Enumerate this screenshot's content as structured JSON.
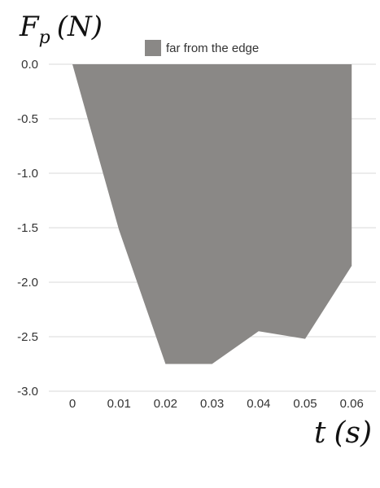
{
  "chart_data": {
    "type": "area",
    "ylabel": "F_p (N)",
    "xlabel": "t (s)",
    "categories": [
      "0",
      "0.01",
      "0.02",
      "0.03",
      "0.04",
      "0.05",
      "0.06"
    ],
    "series": [
      {
        "name": "far from the edge",
        "color": "#8a8886",
        "values": [
          0.0,
          -1.52,
          -2.75,
          -2.75,
          -2.45,
          -2.52,
          -1.85
        ]
      }
    ],
    "ylim": [
      -3.0,
      0.0
    ],
    "y_ticks": [
      "0.0",
      "-0.5",
      "-1.0",
      "-1.5",
      "-2.0",
      "-2.5",
      "-3.0"
    ],
    "grid": true,
    "legend_position": "top-center"
  }
}
